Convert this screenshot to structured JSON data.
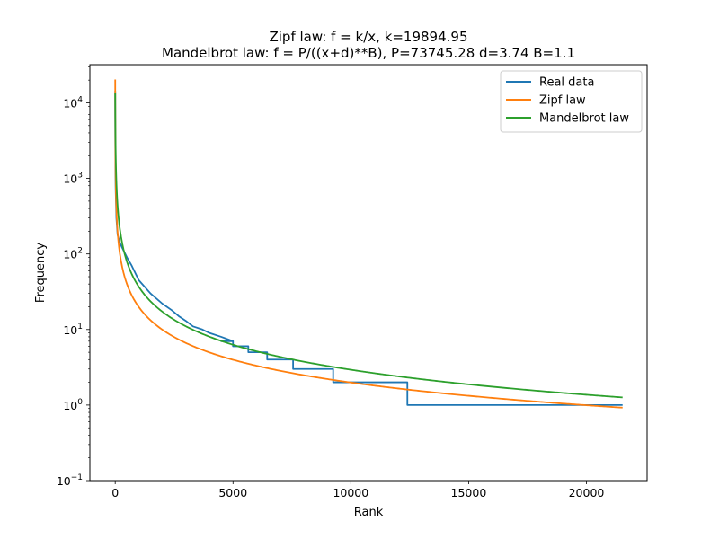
{
  "chart_data": {
    "type": "line",
    "title_lines": [
      "Zipf law: f = k/x, k=19894.95",
      "Mandelbrot law: f = P/((x+d)**B), P=73745.28 d=3.74 B=1.1"
    ],
    "xlabel": "Rank",
    "ylabel": "Frequency",
    "xscale": "linear",
    "yscale": "log",
    "xlim": [
      -1075,
      22575
    ],
    "ylim": [
      0.1,
      32000
    ],
    "x_ticks": [
      {
        "value": 0,
        "label": "0"
      },
      {
        "value": 5000,
        "label": "5000"
      },
      {
        "value": 10000,
        "label": "10000"
      },
      {
        "value": 15000,
        "label": "15000"
      },
      {
        "value": 20000,
        "label": "20000"
      }
    ],
    "y_ticks": [
      {
        "value": 0.1,
        "base": "10",
        "exp": "−1"
      },
      {
        "value": 1,
        "base": "10",
        "exp": "0"
      },
      {
        "value": 10,
        "base": "10",
        "exp": "1"
      },
      {
        "value": 100,
        "base": "10",
        "exp": "2"
      },
      {
        "value": 1000,
        "base": "10",
        "exp": "3"
      },
      {
        "value": 10000,
        "base": "10",
        "exp": "4"
      }
    ],
    "grid": false,
    "legend_position": "top-right",
    "total_ranks": 21500,
    "series": [
      {
        "name": "Real data",
        "color": "#1f77b4",
        "kind": "step",
        "first_value": 14000,
        "points": [
          [
            1,
            14000
          ],
          [
            2,
            7000
          ],
          [
            3,
            4700
          ],
          [
            5,
            2900
          ],
          [
            10,
            1400
          ],
          [
            20,
            700
          ],
          [
            50,
            300
          ],
          [
            100,
            180
          ],
          [
            200,
            140
          ],
          [
            300,
            120
          ],
          [
            500,
            90
          ],
          [
            700,
            70
          ],
          [
            1000,
            45
          ],
          [
            1500,
            30
          ],
          [
            2000,
            22
          ],
          [
            2400,
            18
          ],
          [
            2700,
            15
          ],
          [
            3000,
            13
          ],
          [
            3300,
            11
          ],
          [
            3700,
            10
          ],
          [
            4000,
            9
          ],
          [
            4500,
            8
          ],
          [
            5000,
            7
          ]
        ],
        "steps": [
          {
            "value": 7,
            "from": 4500,
            "to": 5000
          },
          {
            "value": 6,
            "from": 5000,
            "to": 5650
          },
          {
            "value": 5,
            "from": 5650,
            "to": 6450
          },
          {
            "value": 4,
            "from": 6450,
            "to": 7550
          },
          {
            "value": 3,
            "from": 7550,
            "to": 9250
          },
          {
            "value": 2,
            "from": 9250,
            "to": 12400
          },
          {
            "value": 1,
            "from": 12400,
            "to": 21500
          }
        ]
      },
      {
        "name": "Zipf law",
        "color": "#ff7f0e",
        "kind": "function",
        "function": "zipf",
        "k": 19894.95
      },
      {
        "name": "Mandelbrot law",
        "color": "#2ca02c",
        "kind": "function",
        "function": "mandelbrot",
        "P": 73745.28,
        "d": 3.74,
        "B": 1.1
      }
    ]
  }
}
